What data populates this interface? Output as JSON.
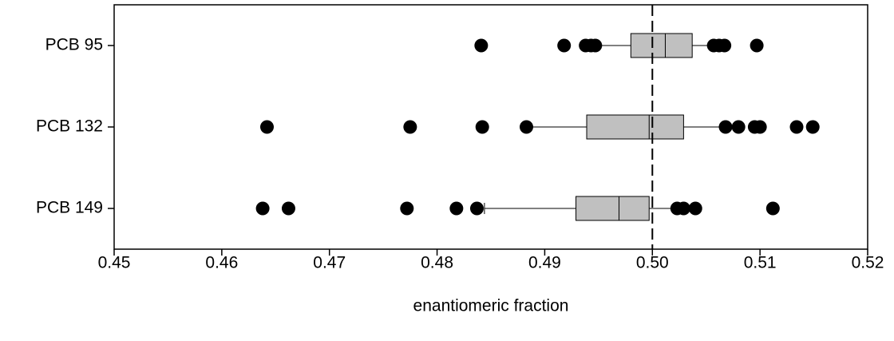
{
  "chart_data": {
    "type": "boxplot",
    "orientation": "horizontal",
    "x_label": "enantiomeric fraction",
    "categories": [
      "PCB 95",
      "PCB 132",
      "PCB 149"
    ],
    "boxes": [
      {
        "low": 0.4948,
        "q1": 0.498,
        "median": 0.5012,
        "q3": 0.5037,
        "high": 0.5056,
        "outliers": [
          0.4841,
          0.4918,
          0.4938,
          0.4943,
          0.4947,
          0.5057,
          0.5062,
          0.5067,
          0.5097
        ]
      },
      {
        "low": 0.4884,
        "q1": 0.4939,
        "median": 0.4997,
        "q3": 0.5029,
        "high": 0.5065,
        "outliers": [
          0.4642,
          0.4775,
          0.4842,
          0.4883,
          0.5068,
          0.508,
          0.5095,
          0.51,
          0.5134,
          0.5149
        ]
      },
      {
        "low": 0.4844,
        "q1": 0.4929,
        "median": 0.4969,
        "q3": 0.4997,
        "high": 0.502,
        "outliers": [
          0.4638,
          0.4662,
          0.4772,
          0.4818,
          0.4837,
          0.5023,
          0.5029,
          0.504,
          0.5112
        ]
      }
    ],
    "color": "#c0c0c0",
    "outlier_color": "#000000",
    "reference_line": 0.5,
    "xlim": [
      0.45,
      0.52
    ],
    "xticks": [
      0.45,
      0.46,
      0.47,
      0.48,
      0.49,
      {
        "value": 0.5,
        "label": "0.50"
      },
      0.51,
      0.52
    ]
  }
}
